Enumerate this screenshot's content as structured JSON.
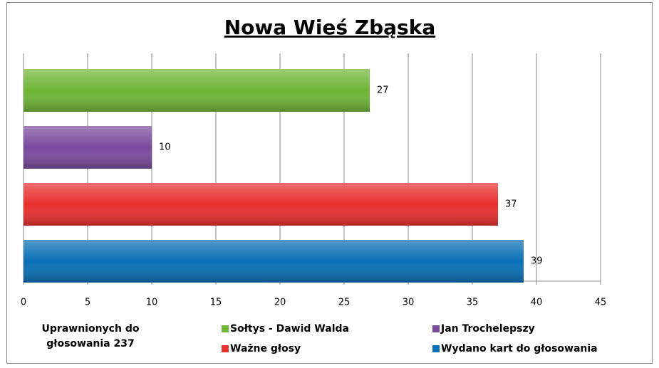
{
  "chart_data": {
    "type": "bar",
    "orientation": "horizontal",
    "title": "Nowa Wieś Zbąska",
    "annotation": [
      "Uprawnionych do",
      "głosowania  237"
    ],
    "categories": [
      null
    ],
    "series": [
      {
        "name": "Sołtys - Dawid Walda",
        "color": "#6fb536",
        "values": [
          27
        ]
      },
      {
        "name": "Jan Trochelepszy",
        "color": "#7a4a9e",
        "values": [
          10
        ]
      },
      {
        "name": "Ważne głosy",
        "color": "#e8302e",
        "values": [
          37
        ]
      },
      {
        "name": "Wydano kart do głosowania",
        "color": "#0a6fb5",
        "values": [
          39
        ]
      }
    ],
    "xlim": [
      0,
      45
    ],
    "xticks": [
      0,
      5,
      10,
      15,
      20,
      25,
      30,
      35,
      40,
      45
    ],
    "grid": true
  }
}
